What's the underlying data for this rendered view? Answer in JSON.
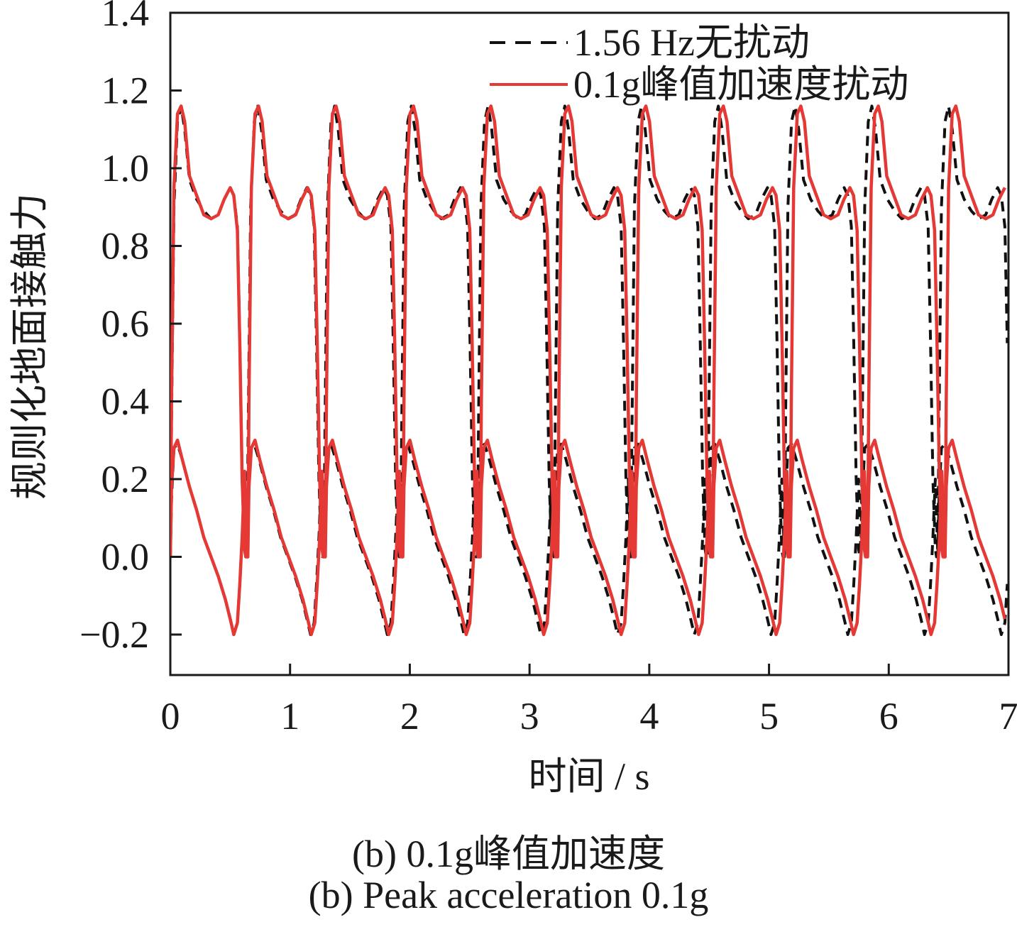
{
  "chart_data": {
    "type": "line",
    "xlabel": "时间 / s",
    "ylabel": "规则化地面接触力",
    "xlim": [
      0,
      7
    ],
    "ylim": [
      -0.3,
      1.4
    ],
    "x_ticks": [
      "0",
      "1",
      "2",
      "3",
      "4",
      "5",
      "6",
      "7"
    ],
    "y_ticks": [
      "−0.2",
      "0.0",
      "0.2",
      "0.4",
      "0.6",
      "0.8",
      "1.0",
      "1.2",
      "1.4"
    ],
    "legend_position": "top-right",
    "grid": false,
    "series": [
      {
        "name": "1.56 Hz无扰动",
        "style": "dashed",
        "color": "#111111",
        "period": 0.641,
        "cycles": 10.4,
        "phase_shift_per_cycle": 0.0,
        "foot_a_profile": {
          "x": [
            0.0,
            0.01,
            0.03,
            0.06,
            0.09,
            0.12,
            0.16,
            0.22,
            0.28,
            0.34,
            0.4,
            0.45,
            0.5,
            0.53,
            0.56,
            0.58,
            0.6,
            0.62,
            0.63,
            0.641
          ],
          "y": [
            0.0,
            0.35,
            0.9,
            1.12,
            1.16,
            1.1,
            0.97,
            0.92,
            0.89,
            0.87,
            0.88,
            0.92,
            0.95,
            0.93,
            0.85,
            0.55,
            0.2,
            0.02,
            0.0,
            0.0
          ]
        },
        "foot_b_profile": {
          "x": [
            0.0,
            0.01,
            0.03,
            0.06,
            0.1,
            0.16,
            0.22,
            0.28,
            0.34,
            0.4,
            0.46,
            0.5,
            0.53,
            0.56,
            0.58,
            0.6,
            0.62,
            0.641
          ],
          "y": [
            0.0,
            0.15,
            0.28,
            0.29,
            0.25,
            0.18,
            0.12,
            0.05,
            0.0,
            -0.05,
            -0.11,
            -0.16,
            -0.2,
            -0.17,
            -0.07,
            0.05,
            0.2,
            0.0
          ]
        }
      },
      {
        "name": "0.1g峰值加速度扰动",
        "style": "solid",
        "color": "#e53935",
        "period": 0.647,
        "cycles": 10.25,
        "foot_a_profile": {
          "x": [
            0.0,
            0.01,
            0.03,
            0.06,
            0.09,
            0.12,
            0.16,
            0.22,
            0.28,
            0.34,
            0.4,
            0.45,
            0.5,
            0.53,
            0.56,
            0.58,
            0.6,
            0.62,
            0.63,
            0.647
          ],
          "y": [
            0.0,
            0.4,
            0.95,
            1.14,
            1.16,
            1.12,
            0.98,
            0.93,
            0.88,
            0.87,
            0.88,
            0.92,
            0.95,
            0.93,
            0.84,
            0.55,
            0.2,
            0.02,
            0.0,
            0.0
          ]
        },
        "foot_b_profile": {
          "x": [
            0.0,
            0.01,
            0.03,
            0.06,
            0.1,
            0.16,
            0.22,
            0.28,
            0.34,
            0.4,
            0.46,
            0.5,
            0.53,
            0.56,
            0.58,
            0.6,
            0.62,
            0.647
          ],
          "y": [
            0.0,
            0.18,
            0.28,
            0.3,
            0.25,
            0.18,
            0.12,
            0.05,
            0.0,
            -0.05,
            -0.11,
            -0.16,
            -0.2,
            -0.17,
            -0.07,
            0.05,
            0.22,
            0.0
          ]
        }
      }
    ]
  },
  "captions": {
    "cn": "(b) 0.1g峰值加速度",
    "en": "(b) Peak acceleration 0.1g"
  }
}
